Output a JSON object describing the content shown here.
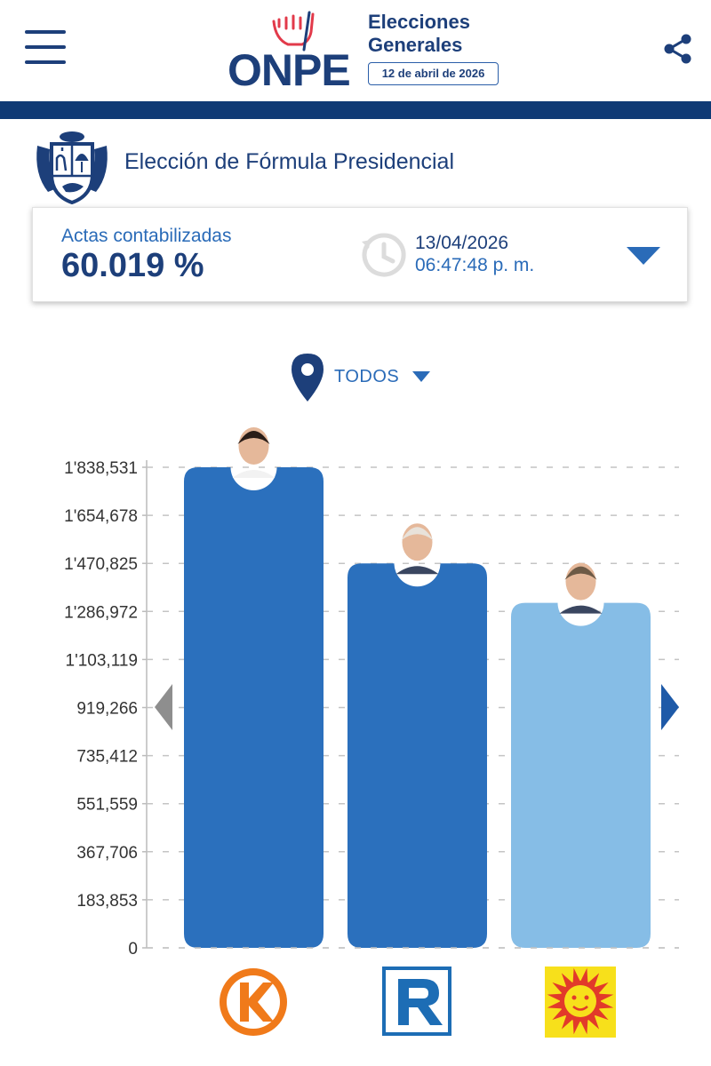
{
  "header": {
    "logo_text": "ONPE",
    "event_line1": "Elecciones",
    "event_line2": "Generales",
    "event_date": "12 de abril de 2026",
    "icons": {
      "menu": "hamburger-menu-icon",
      "share": "share-icon"
    }
  },
  "election": {
    "title": "Elección de Fórmula Presidencial"
  },
  "actas": {
    "label": "Actas contabilizadas",
    "value": "60.019 %",
    "updated_date": "13/04/2026",
    "updated_time": "06:47:48 p. m."
  },
  "filter": {
    "label": "TODOS"
  },
  "colors": {
    "navy": "#1d3f7a",
    "header_bar": "#0f3a75",
    "bar_primary": "#2b70bd",
    "bar_light": "#86bde6",
    "accent_blue": "#2a6bb8",
    "party_orange": "#f07a1a",
    "party_red": "#e23a2a",
    "party_yellow": "#f7e01b"
  },
  "chart_data": {
    "type": "bar",
    "categories": [
      "Fuerza Popular",
      "Renovación Popular",
      "Partido País Para Todos"
    ],
    "values": [
      1838531,
      1470825,
      1320000
    ],
    "bar_colors": [
      "#2b70bd",
      "#2b70bd",
      "#86bde6"
    ],
    "party_logos": [
      "fuerza-popular-k-logo",
      "renovacion-popular-r-logo",
      "sun-face-logo"
    ],
    "ylim": [
      0,
      1838531
    ],
    "y_ticks": [
      0,
      183853,
      367706,
      551559,
      735412,
      919266,
      1103119,
      1286972,
      1470825,
      1654678,
      1838531
    ],
    "y_tick_labels": [
      "0",
      "183,853",
      "367,706",
      "551,559",
      "735,412",
      "919,266",
      "1'103,119",
      "1'286,972",
      "1'470,825",
      "1'654,678",
      "1'838,531"
    ],
    "grid": true,
    "title": "",
    "xlabel": "",
    "ylabel": ""
  }
}
